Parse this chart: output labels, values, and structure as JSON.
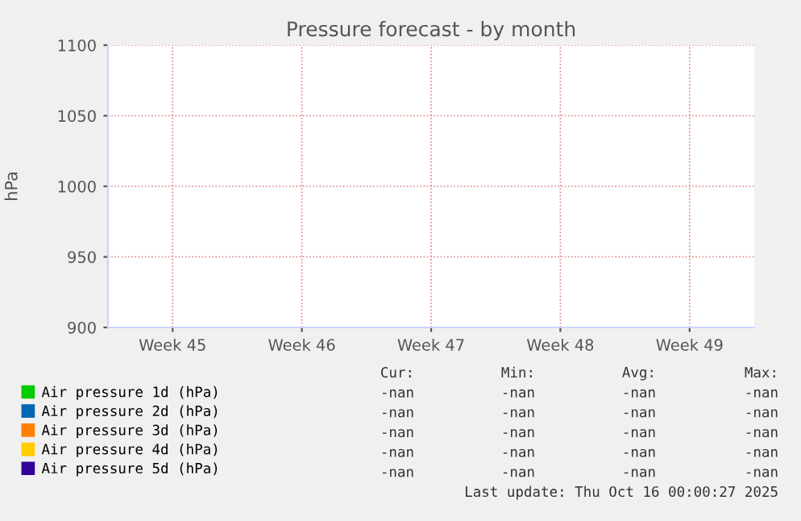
{
  "chart_data": {
    "type": "line",
    "title": "Pressure forecast - by month",
    "ylabel": "hPa",
    "categories": [
      "Week 45",
      "Week 46",
      "Week 47",
      "Week 48",
      "Week 49"
    ],
    "ylim": [
      900,
      1100
    ],
    "yticks": [
      900,
      950,
      1000,
      1050,
      1100
    ],
    "grid": true,
    "legend": "bottom",
    "series": [
      {
        "name": "Air pressure 1d (hPa)",
        "color": "#00cc00",
        "values": [
          null,
          null,
          null,
          null,
          null
        ]
      },
      {
        "name": "Air pressure 2d (hPa)",
        "color": "#0066b3",
        "values": [
          null,
          null,
          null,
          null,
          null
        ]
      },
      {
        "name": "Air pressure 3d (hPa)",
        "color": "#ff8000",
        "values": [
          null,
          null,
          null,
          null,
          null
        ]
      },
      {
        "name": "Air pressure 4d (hPa)",
        "color": "#ffcc00",
        "values": [
          null,
          null,
          null,
          null,
          null
        ]
      },
      {
        "name": "Air pressure 5d (hPa)",
        "color": "#330099",
        "values": [
          null,
          null,
          null,
          null,
          null
        ]
      }
    ],
    "annotations": [
      "Cur:",
      "Min:",
      "Avg:",
      "Max:",
      "-nan",
      "-nan",
      "-nan",
      "-nan",
      "-nan",
      "-nan",
      "-nan",
      "-nan",
      "-nan",
      "-nan",
      "-nan",
      "-nan",
      "-nan",
      "-nan",
      "-nan",
      "-nan",
      "-nan",
      "-nan",
      "-nan",
      "-nan",
      "Last update: Thu Oct 16 00:00:27 2025"
    ]
  }
}
